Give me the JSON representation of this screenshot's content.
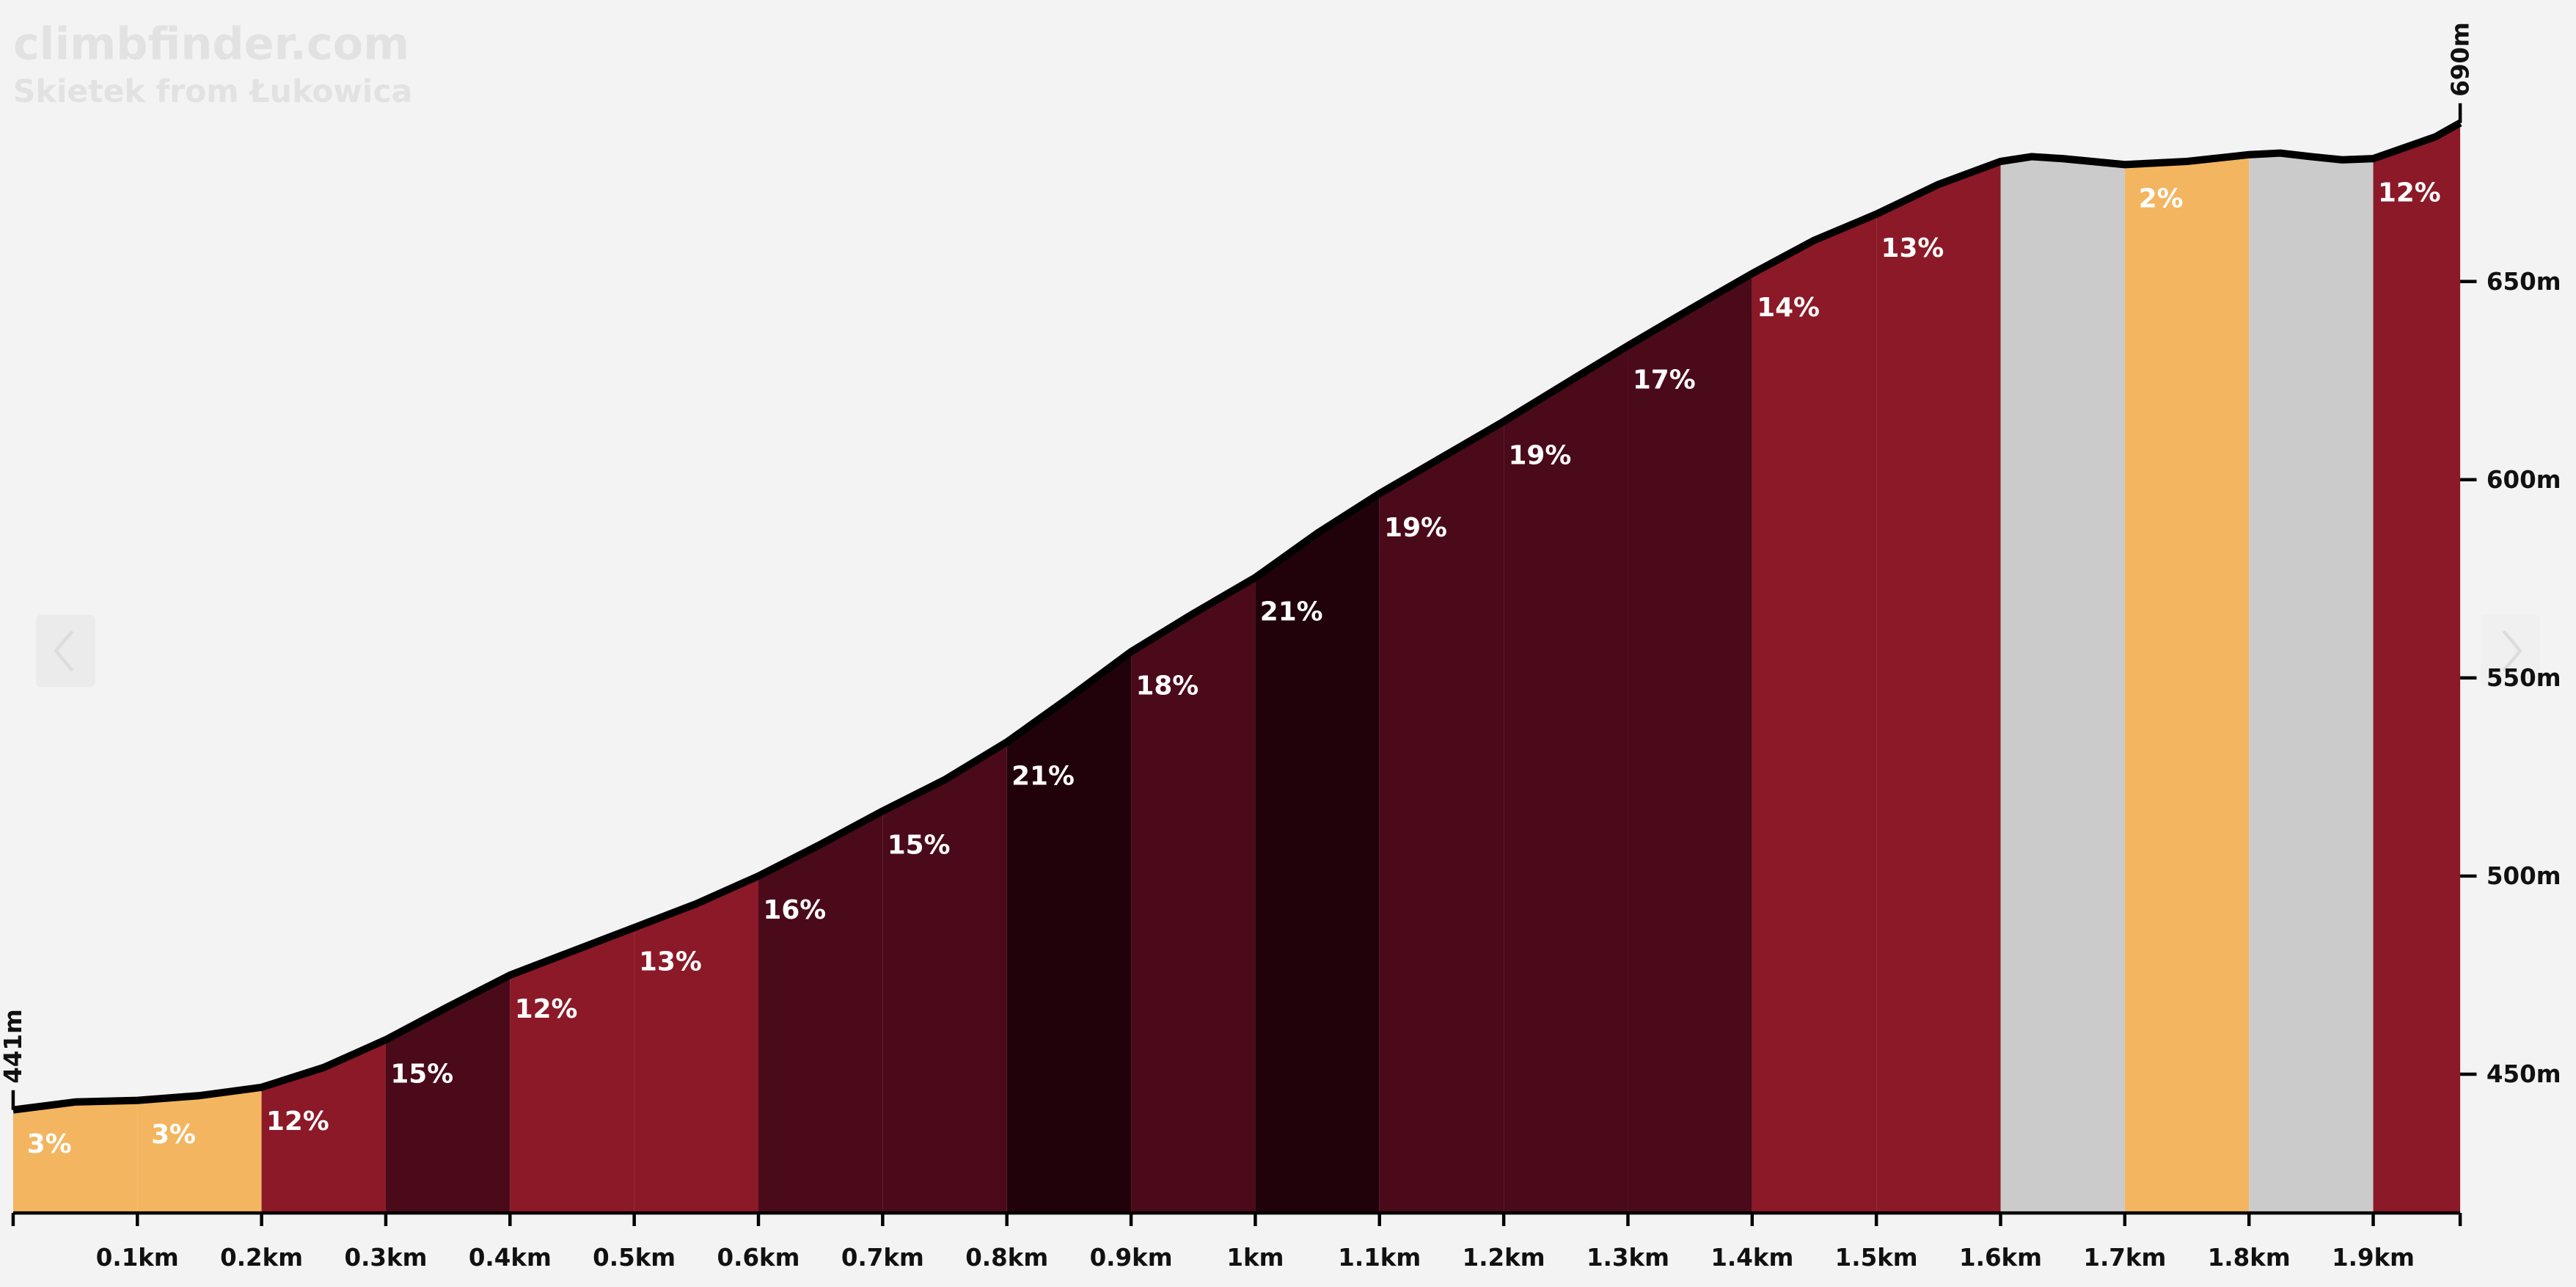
{
  "chart_data": {
    "type": "elevation_profile",
    "title": "climbfinder.com",
    "subtitle": "Skietek from Łukowica",
    "xlim": [
      0,
      1.97
    ],
    "ylim": [
      415,
      721
    ],
    "xticks": [
      {
        "value": 0.1,
        "label": "0.1km"
      },
      {
        "value": 0.2,
        "label": "0.2km"
      },
      {
        "value": 0.3,
        "label": "0.3km"
      },
      {
        "value": 0.4,
        "label": "0.4km"
      },
      {
        "value": 0.5,
        "label": "0.5km"
      },
      {
        "value": 0.6,
        "label": "0.6km"
      },
      {
        "value": 0.7,
        "label": "0.7km"
      },
      {
        "value": 0.8,
        "label": "0.8km"
      },
      {
        "value": 0.9,
        "label": "0.9km"
      },
      {
        "value": 1,
        "label": "1km"
      },
      {
        "value": 1.1,
        "label": "1.1km"
      },
      {
        "value": 1.2,
        "label": "1.2km"
      },
      {
        "value": 1.3,
        "label": "1.3km"
      },
      {
        "value": 1.4,
        "label": "1.4km"
      },
      {
        "value": 1.5,
        "label": "1.5km"
      },
      {
        "value": 1.6,
        "label": "1.6km"
      },
      {
        "value": 1.7,
        "label": "1.7km"
      },
      {
        "value": 1.8,
        "label": "1.8km"
      },
      {
        "value": 1.9,
        "label": "1.9km"
      }
    ],
    "yticks": [
      {
        "value": 450,
        "label": "450m"
      },
      {
        "value": 500,
        "label": "500m"
      },
      {
        "value": 550,
        "label": "550m"
      },
      {
        "value": 600,
        "label": "600m"
      },
      {
        "value": 650,
        "label": "650m"
      }
    ],
    "profile": {
      "x": [
        0,
        0.05,
        0.1,
        0.15,
        0.2,
        0.25,
        0.3,
        0.35,
        0.4,
        0.45,
        0.5,
        0.55,
        0.6,
        0.65,
        0.7,
        0.75,
        0.8,
        0.85,
        0.9,
        0.95,
        1.0,
        1.05,
        1.1,
        1.15,
        1.2,
        1.25,
        1.3,
        1.35,
        1.4,
        1.45,
        1.5,
        1.55,
        1.6,
        1.625,
        1.65,
        1.7,
        1.75,
        1.8,
        1.825,
        1.85,
        1.875,
        1.9,
        1.95,
        1.97
      ],
      "elevation": [
        441,
        443,
        443.4,
        444.6,
        446.7,
        451.7,
        458.7,
        467,
        475,
        481,
        487,
        493,
        500,
        508,
        516.4,
        524.3,
        533.8,
        545,
        556.6,
        566.2,
        575.3,
        586.5,
        596.5,
        605.6,
        614.7,
        624.3,
        633.8,
        643,
        652,
        660.4,
        667,
        674.5,
        680.3,
        681.5,
        681,
        679.5,
        680.3,
        682,
        682.4,
        681.5,
        680.7,
        681,
        686.5,
        690
      ],
      "color": "#000000"
    },
    "segments": {
      "edges": [
        0,
        0.1,
        0.2,
        0.3,
        0.4,
        0.5,
        0.6,
        0.7,
        0.8,
        0.9,
        1.0,
        1.1,
        1.2,
        1.3,
        1.4,
        1.5,
        1.6,
        1.7,
        1.8,
        1.9,
        1.97
      ],
      "grades": [
        3,
        3,
        12,
        15,
        12,
        13,
        16,
        15,
        21,
        18,
        21,
        19,
        19,
        17,
        14,
        13,
        null,
        2,
        null,
        12
      ],
      "grade_labels": [
        "3%",
        "3%",
        "12%",
        "15%",
        "12%",
        "13%",
        "16%",
        "15%",
        "21%",
        "18%",
        "21%",
        "19%",
        "19%",
        "17%",
        "14%",
        "13%",
        null,
        "2%",
        null,
        "12%"
      ],
      "colors": [
        "#f3b55f",
        "#f3b55f",
        "#8b1927",
        "#4a0a1a",
        "#8b1927",
        "#8b1927",
        "#4a0a1a",
        "#4a0a1a",
        "#22020a",
        "#4a0a1a",
        "#22020a",
        "#4a0a1a",
        "#4a0a1a",
        "#4a0a1a",
        "#8b1927",
        "#8b1927",
        "#cbcbcb",
        "#f3b55f",
        "#cbcbcb",
        "#8b1927"
      ]
    },
    "annotations": [
      {
        "text": "441m",
        "x": 0,
        "y": 441
      },
      {
        "text": "690m",
        "x": 1.97,
        "y": 690
      }
    ]
  }
}
